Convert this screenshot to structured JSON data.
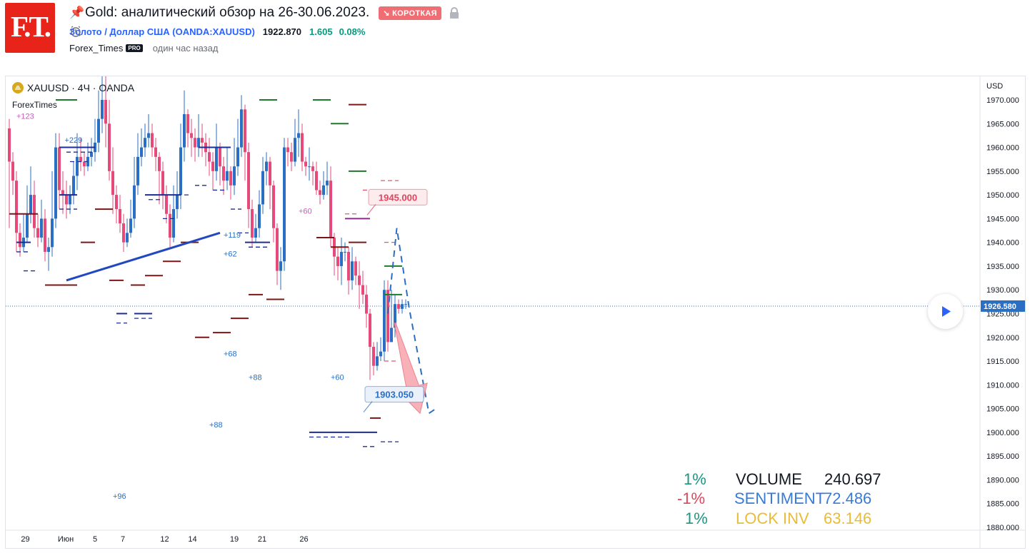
{
  "header": {
    "logo_text": "F.T.",
    "title": "Gold: аналитический обзор на 26-30.06.2023.",
    "badge": "↘ КОРОТКАЯ",
    "symbol_name": "Золото / Доллар США",
    "symbol_code": "(OANDA:XAUUSD)",
    "price": "1922.870",
    "change": "1.605",
    "change_pct": "0.08%",
    "author": "Forex_Times",
    "pro_badge": "PRO",
    "time": "один час назад"
  },
  "legend": {
    "symbol": "XAUUSD · 4Ч · OANDA",
    "source": "ForexTimes"
  },
  "colors": {
    "up": "#2a6fc4",
    "down": "#e54a7a",
    "maroon": "#7d1416",
    "green": "#1b7a2b",
    "navy": "#1b2d96",
    "accent": "#f06d73",
    "trend": "#2148c0"
  },
  "chart_data": {
    "type": "candlestick",
    "timeframe": "4Ч",
    "currency": "USD",
    "ylim": [
      1878,
      1975
    ],
    "y_ticks": [
      "1880.000",
      "1885.000",
      "1890.000",
      "1895.000",
      "1900.000",
      "1905.000",
      "1910.000",
      "1915.000",
      "1920.000",
      "1925.000",
      "1930.000",
      "1935.000",
      "1940.000",
      "1945.000",
      "1950.000",
      "1955.000",
      "1960.000",
      "1965.000",
      "1970.000"
    ],
    "x_labels": [
      {
        "label": "29",
        "pos": 0
      },
      {
        "label": "Июн",
        "pos": 14.5
      },
      {
        "label": "5",
        "pos": 25
      },
      {
        "label": "7",
        "pos": 35
      },
      {
        "label": "12",
        "pos": 50
      },
      {
        "label": "14",
        "pos": 60
      },
      {
        "label": "19",
        "pos": 75
      },
      {
        "label": "21",
        "pos": 85
      },
      {
        "label": "26",
        "pos": 100
      }
    ],
    "last_price": "1926.580",
    "candles": [
      [
        1964,
        1957,
        1966,
        1943
      ],
      [
        1957,
        1953,
        1959,
        1950
      ],
      [
        1953,
        1942,
        1955,
        1938
      ],
      [
        1942,
        1939,
        1944,
        1937
      ],
      [
        1939,
        1941,
        1946,
        1938
      ],
      [
        1941,
        1946,
        1952,
        1940
      ],
      [
        1946,
        1950,
        1956,
        1944
      ],
      [
        1950,
        1943,
        1953,
        1941
      ],
      [
        1943,
        1941,
        1946,
        1939
      ],
      [
        1941,
        1945,
        1949,
        1940
      ],
      [
        1945,
        1938,
        1947,
        1936
      ],
      [
        1938,
        1939,
        1941,
        1934
      ],
      [
        1939,
        1945,
        1955,
        1937
      ],
      [
        1945,
        1960,
        1963,
        1943
      ],
      [
        1960,
        1951,
        1963,
        1947
      ],
      [
        1951,
        1950,
        1955,
        1946
      ],
      [
        1950,
        1948,
        1953,
        1945
      ],
      [
        1948,
        1950,
        1952,
        1946
      ],
      [
        1950,
        1954,
        1957,
        1948
      ],
      [
        1954,
        1958,
        1963,
        1951
      ],
      [
        1958,
        1957,
        1962,
        1955
      ],
      [
        1957,
        1956,
        1959,
        1954
      ],
      [
        1956,
        1958,
        1961,
        1955
      ],
      [
        1958,
        1959,
        1962,
        1956
      ],
      [
        1959,
        1961,
        1966,
        1957
      ],
      [
        1961,
        1966,
        1972,
        1959
      ],
      [
        1966,
        1970,
        1975,
        1963
      ],
      [
        1970,
        1965,
        1975,
        1960
      ],
      [
        1965,
        1955,
        1970,
        1953
      ],
      [
        1955,
        1950,
        1960,
        1946
      ],
      [
        1950,
        1947,
        1952,
        1944
      ],
      [
        1947,
        1944,
        1950,
        1942
      ],
      [
        1944,
        1940,
        1946,
        1938
      ],
      [
        1940,
        1942,
        1945,
        1939
      ],
      [
        1942,
        1945,
        1949,
        1941
      ],
      [
        1945,
        1952,
        1958,
        1943
      ],
      [
        1952,
        1958,
        1963,
        1950
      ],
      [
        1958,
        1960,
        1964,
        1956
      ],
      [
        1960,
        1962,
        1965,
        1958
      ],
      [
        1962,
        1963,
        1967,
        1960
      ],
      [
        1963,
        1960,
        1965,
        1958
      ],
      [
        1960,
        1958,
        1962,
        1955
      ],
      [
        1958,
        1955,
        1959,
        1948
      ],
      [
        1955,
        1950,
        1957,
        1947
      ],
      [
        1950,
        1946,
        1952,
        1944
      ],
      [
        1946,
        1941,
        1948,
        1939
      ],
      [
        1941,
        1947,
        1952,
        1940
      ],
      [
        1947,
        1950,
        1955,
        1945
      ],
      [
        1950,
        1960,
        1965,
        1947
      ],
      [
        1960,
        1967,
        1972,
        1957
      ],
      [
        1967,
        1963,
        1968,
        1960
      ],
      [
        1963,
        1962,
        1966,
        1958
      ],
      [
        1962,
        1960,
        1964,
        1957
      ],
      [
        1960,
        1962,
        1967,
        1958
      ],
      [
        1962,
        1961,
        1965,
        1958
      ],
      [
        1961,
        1959,
        1963,
        1956
      ],
      [
        1959,
        1957,
        1962,
        1954
      ],
      [
        1957,
        1955,
        1959,
        1951
      ],
      [
        1955,
        1960,
        1965,
        1953
      ],
      [
        1960,
        1956,
        1961,
        1952
      ],
      [
        1956,
        1953,
        1958,
        1950
      ],
      [
        1953,
        1955,
        1960,
        1951
      ],
      [
        1955,
        1952,
        1956,
        1949
      ],
      [
        1952,
        1956,
        1962,
        1950
      ],
      [
        1956,
        1960,
        1966,
        1954
      ],
      [
        1960,
        1968,
        1971,
        1958
      ],
      [
        1968,
        1959,
        1969,
        1953
      ],
      [
        1959,
        1947,
        1961,
        1943
      ],
      [
        1947,
        1941,
        1949,
        1939
      ],
      [
        1941,
        1943,
        1946,
        1940
      ],
      [
        1943,
        1948,
        1951,
        1941
      ],
      [
        1948,
        1955,
        1958,
        1946
      ],
      [
        1955,
        1957,
        1959,
        1952
      ],
      [
        1957,
        1952,
        1958,
        1947
      ],
      [
        1952,
        1943,
        1953,
        1940
      ],
      [
        1943,
        1934,
        1944,
        1931
      ],
      [
        1934,
        1936,
        1939,
        1930
      ],
      [
        1936,
        1960,
        1962,
        1934
      ],
      [
        1960,
        1959,
        1962,
        1956
      ],
      [
        1959,
        1957,
        1961,
        1955
      ],
      [
        1957,
        1962,
        1966,
        1956
      ],
      [
        1962,
        1963,
        1968,
        1958
      ],
      [
        1963,
        1957,
        1965,
        1955
      ],
      [
        1957,
        1956,
        1958,
        1954
      ],
      [
        1956,
        1956,
        1960,
        1953
      ],
      [
        1956,
        1955,
        1957,
        1952
      ],
      [
        1955,
        1951,
        1957,
        1950
      ],
      [
        1951,
        1950,
        1953,
        1948
      ],
      [
        1950,
        1952,
        1955,
        1949
      ],
      [
        1952,
        1953,
        1957,
        1950
      ],
      [
        1953,
        1941,
        1956,
        1939
      ],
      [
        1941,
        1937,
        1942,
        1933
      ],
      [
        1937,
        1935,
        1939,
        1932
      ],
      [
        1935,
        1938,
        1941,
        1931
      ],
      [
        1938,
        1938,
        1940,
        1936
      ],
      [
        1938,
        1932,
        1939,
        1929
      ],
      [
        1932,
        1936,
        1939,
        1930
      ],
      [
        1936,
        1933,
        1937,
        1931
      ],
      [
        1933,
        1931,
        1936,
        1926
      ],
      [
        1931,
        1929,
        1934,
        1927
      ],
      [
        1929,
        1925,
        1931,
        1922
      ],
      [
        1925,
        1918,
        1926,
        1911
      ],
      [
        1918,
        1914,
        1919,
        1912
      ],
      [
        1914,
        1916,
        1919,
        1913
      ],
      [
        1916,
        1917,
        1920,
        1915
      ],
      [
        1917,
        1930,
        1932,
        1915
      ],
      [
        1930,
        1919,
        1932,
        1917
      ],
      [
        1919,
        1922,
        1930,
        1920
      ],
      [
        1922,
        1927,
        1929,
        1920
      ],
      [
        1927,
        1926,
        1928,
        1925
      ],
      [
        1926,
        1927,
        1928,
        1925
      ],
      [
        1927,
        1927,
        1928,
        1926
      ]
    ],
    "levels": [
      {
        "x1": 0,
        "x2": 8,
        "y": 1946,
        "color": "maroon"
      },
      {
        "x1": 10,
        "x2": 14,
        "y": 1931,
        "color": "maroon"
      },
      {
        "x1": 2,
        "x2": 6,
        "y": 1940,
        "color": "navy"
      },
      {
        "x1": 13,
        "x2": 19,
        "y": 1970,
        "color": "green"
      },
      {
        "x1": 14,
        "x2": 24,
        "y": 1960,
        "color": "navy"
      },
      {
        "x1": 14,
        "x2": 19,
        "y": 1950,
        "color": "navy"
      },
      {
        "x1": 14,
        "x2": 19,
        "y": 1931,
        "color": "maroon"
      },
      {
        "x1": 20,
        "x2": 24,
        "y": 1940,
        "color": "maroon"
      },
      {
        "x1": 24,
        "x2": 29,
        "y": 1947,
        "color": "maroon"
      },
      {
        "x1": 28,
        "x2": 32,
        "y": 1932,
        "color": "maroon"
      },
      {
        "x1": 30,
        "x2": 33,
        "y": 1925,
        "color": "navy"
      },
      {
        "x1": 35,
        "x2": 40,
        "y": 1925,
        "color": "navy"
      },
      {
        "x1": 34,
        "x2": 38,
        "y": 1931,
        "color": "maroon"
      },
      {
        "x1": 38,
        "x2": 43,
        "y": 1933,
        "color": "maroon"
      },
      {
        "x1": 38,
        "x2": 48,
        "y": 1950,
        "color": "navy"
      },
      {
        "x1": 43,
        "x2": 48,
        "y": 1936,
        "color": "maroon"
      },
      {
        "x1": 48,
        "x2": 53,
        "y": 1940,
        "color": "maroon"
      },
      {
        "x1": 52,
        "x2": 56,
        "y": 1920,
        "color": "maroon"
      },
      {
        "x1": 53,
        "x2": 62,
        "y": 1960,
        "color": "navy"
      },
      {
        "x1": 57,
        "x2": 62,
        "y": 1921,
        "color": "maroon"
      },
      {
        "x1": 62,
        "x2": 67,
        "y": 1924,
        "color": "maroon"
      },
      {
        "x1": 67,
        "x2": 71,
        "y": 1929,
        "color": "maroon"
      },
      {
        "x1": 66,
        "x2": 73,
        "y": 1940,
        "color": "navy"
      },
      {
        "x1": 70,
        "x2": 75,
        "y": 1970,
        "color": "green"
      },
      {
        "x1": 72,
        "x2": 77,
        "y": 1928,
        "color": "maroon"
      },
      {
        "x1": 85,
        "x2": 90,
        "y": 1970,
        "color": "green"
      },
      {
        "x1": 86,
        "x2": 91,
        "y": 1941,
        "color": "maroon"
      },
      {
        "x1": 90,
        "x2": 95,
        "y": 1965,
        "color": "green"
      },
      {
        "x1": 90,
        "x2": 95,
        "y": 1939,
        "color": "maroon"
      },
      {
        "x1": 95,
        "x2": 100,
        "y": 1969,
        "color": "maroon"
      },
      {
        "x1": 95,
        "x2": 100,
        "y": 1955,
        "color": "green"
      },
      {
        "x1": 95,
        "x2": 100,
        "y": 1940,
        "color": "maroon"
      },
      {
        "x1": 94,
        "x2": 101,
        "y": 1945,
        "color": "purple"
      },
      {
        "x1": 84,
        "x2": 103,
        "y": 1900,
        "color": "navy"
      },
      {
        "x1": 101,
        "x2": 104,
        "y": 1903,
        "color": "maroon"
      },
      {
        "x1": 105,
        "x2": 110,
        "y": 1935,
        "color": "green"
      },
      {
        "x1": 105,
        "x2": 110,
        "y": 1929,
        "color": "green"
      }
    ],
    "dashed_levels": [
      {
        "x1": 2,
        "x2": 6,
        "y": 1938,
        "color": "navy"
      },
      {
        "x1": 4,
        "x2": 8,
        "y": 1934,
        "color": "navy"
      },
      {
        "x1": 14,
        "x2": 19,
        "y": 1947,
        "color": "navy"
      },
      {
        "x1": 16,
        "x2": 24,
        "y": 1959,
        "color": "navy"
      },
      {
        "x1": 17,
        "x2": 22,
        "y": 1957,
        "color": "navy"
      },
      {
        "x1": 30,
        "x2": 33,
        "y": 1923,
        "color": "navy"
      },
      {
        "x1": 35,
        "x2": 40,
        "y": 1924,
        "color": "navy"
      },
      {
        "x1": 39,
        "x2": 43,
        "y": 1949,
        "color": "navy"
      },
      {
        "x1": 43,
        "x2": 47,
        "y": 1945,
        "color": "navy"
      },
      {
        "x1": 47,
        "x2": 51,
        "y": 1950,
        "color": "navy"
      },
      {
        "x1": 52,
        "x2": 56,
        "y": 1952,
        "color": "navy"
      },
      {
        "x1": 57,
        "x2": 61,
        "y": 1951,
        "color": "navy"
      },
      {
        "x1": 62,
        "x2": 65,
        "y": 1947,
        "color": "navy"
      },
      {
        "x1": 64,
        "x2": 67,
        "y": 1942,
        "color": "navy"
      },
      {
        "x1": 67,
        "x2": 73,
        "y": 1939,
        "color": "navy"
      },
      {
        "x1": 84,
        "x2": 90,
        "y": 1899,
        "color": "navy"
      },
      {
        "x1": 90,
        "x2": 96,
        "y": 1899,
        "color": "navy"
      },
      {
        "x1": 99,
        "x2": 103,
        "y": 1897,
        "color": "navy"
      },
      {
        "x1": 104,
        "x2": 109,
        "y": 1898,
        "color": "navy"
      },
      {
        "x1": 104,
        "x2": 109,
        "y": 1953,
        "color": "red"
      },
      {
        "x1": 99,
        "x2": 104,
        "y": 1951,
        "color": "red"
      },
      {
        "x1": 94,
        "x2": 98,
        "y": 1946,
        "color": "red"
      },
      {
        "x1": 105,
        "x2": 109,
        "y": 1940,
        "color": "red"
      },
      {
        "x1": 105,
        "x2": 109,
        "y": 1915,
        "color": "red"
      }
    ],
    "trendline": [
      [
        15,
        1932
      ],
      [
        58,
        1942
      ]
    ],
    "forecast_path": [
      [
        106,
        1925
      ],
      [
        108.5,
        1943
      ],
      [
        112,
        1926
      ],
      [
        117.5,
        1904
      ],
      [
        119.5,
        1905
      ]
    ],
    "forecast_arrow": [
      [
        108,
        1923
      ],
      [
        115,
        1904
      ]
    ],
    "price_callouts": [
      {
        "label": "1945.000",
        "x": 103,
        "y": 1949.5,
        "color": "red"
      },
      {
        "label": "1903.050",
        "x": 102,
        "y": 1908,
        "color": "blue"
      }
    ],
    "annotations": [
      {
        "text": "+123",
        "x": 2,
        "y": 1966,
        "color": "purple"
      },
      {
        "text": "+229",
        "x": 15.5,
        "y": 1961,
        "color": "blue"
      },
      {
        "text": "+119",
        "x": 60,
        "y": 1941,
        "color": "blue"
      },
      {
        "text": "+62",
        "x": 60,
        "y": 1937,
        "color": "blue"
      },
      {
        "text": "+60",
        "x": 81,
        "y": 1946,
        "color": "purple"
      },
      {
        "text": "+68",
        "x": 60,
        "y": 1916,
        "color": "blue"
      },
      {
        "text": "+88",
        "x": 67,
        "y": 1911,
        "color": "blue"
      },
      {
        "text": "+60",
        "x": 90,
        "y": 1911,
        "color": "blue"
      },
      {
        "text": "+88",
        "x": 56,
        "y": 1901,
        "color": "blue"
      },
      {
        "text": "+96",
        "x": 29,
        "y": 1886,
        "color": "blue"
      }
    ]
  },
  "stats": [
    {
      "pct": "1%",
      "pct_color": "#1b9680",
      "label": "VOLUME",
      "label_color": "#131722",
      "value": "240.697",
      "value_color": "#131722"
    },
    {
      "pct": "-1%",
      "pct_color": "#e0455d",
      "label": "SENTIMENT",
      "label_color": "#3a7bd5",
      "value": "72.486",
      "value_color": "#3a7bd5"
    },
    {
      "pct": "1%",
      "pct_color": "#1b9680",
      "label": "LOCK INV",
      "label_color": "#e8bc3a",
      "value": "63.146",
      "value_color": "#e8bc3a"
    }
  ]
}
